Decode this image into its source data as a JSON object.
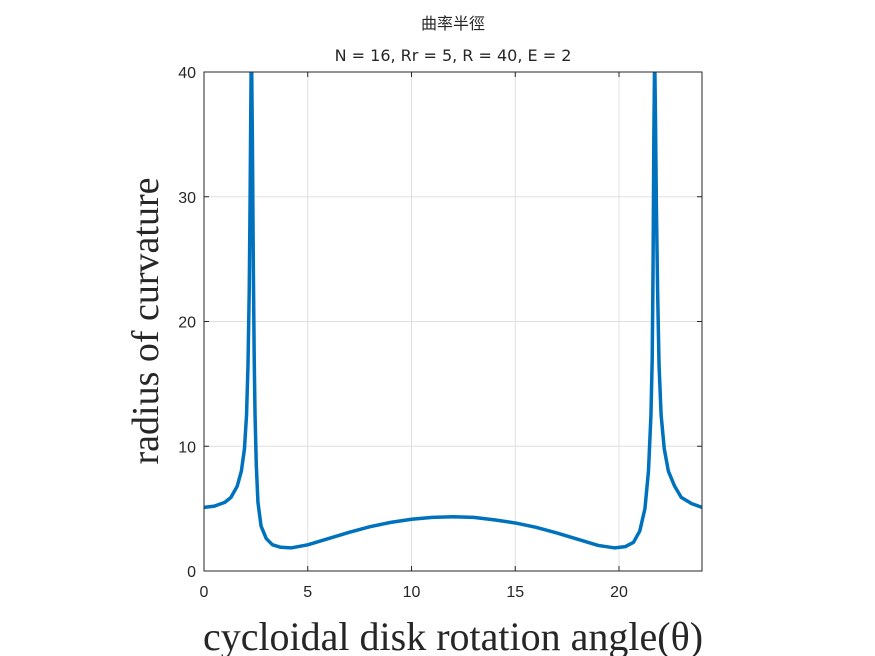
{
  "chart_data": {
    "type": "line",
    "title": "曲率半徑",
    "subtitle": "N = 16, Rr = 5, R = 40, E = 2",
    "xlabel": "cycloidal disk rotation angle(θ)",
    "ylabel": "radius of curvature",
    "xlim": [
      0,
      24
    ],
    "ylim": [
      0,
      40
    ],
    "xticks": [
      0,
      5,
      10,
      15,
      20
    ],
    "yticks": [
      0,
      10,
      20,
      30,
      40
    ],
    "grid": true,
    "colors": {
      "series": "#0072BD",
      "axis": "#262626",
      "grid": "#E0E0E0"
    },
    "series": [
      {
        "x": [
          0,
          0.5,
          1.0,
          1.3,
          1.6,
          1.8,
          1.95,
          2.05,
          2.12,
          2.18,
          2.22,
          2.25,
          2.27,
          2.3,
          2.33,
          2.38,
          2.42,
          2.46,
          2.52,
          2.6,
          2.75,
          3.0,
          3.3,
          3.7,
          4.2,
          5.0,
          6.0,
          7.0,
          8.0,
          9.0,
          10.0,
          11.0,
          12.0,
          13.0,
          14.0,
          15.0,
          16.0,
          17.0,
          18.0,
          19.0,
          19.8,
          20.3,
          20.7,
          21.0,
          21.25,
          21.42,
          21.54,
          21.6,
          21.64,
          21.68,
          21.71,
          21.73,
          21.76,
          21.8,
          21.86,
          21.93,
          22.03,
          22.18,
          22.38,
          22.68,
          23.0,
          23.5,
          24.0
        ],
        "y": [
          5.1,
          5.2,
          5.5,
          5.9,
          6.8,
          8.0,
          9.8,
          12.5,
          16.5,
          22.5,
          29.5,
          36.0,
          40.0,
          40.0,
          35.0,
          24.0,
          17.0,
          12.5,
          8.5,
          5.5,
          3.6,
          2.6,
          2.1,
          1.9,
          1.85,
          2.1,
          2.6,
          3.1,
          3.55,
          3.9,
          4.15,
          4.3,
          4.35,
          4.3,
          4.1,
          3.85,
          3.5,
          3.05,
          2.55,
          2.05,
          1.85,
          1.95,
          2.3,
          3.2,
          5.0,
          8.0,
          12.5,
          17.0,
          24.0,
          35.0,
          40.0,
          40.0,
          36.0,
          29.5,
          22.5,
          16.5,
          12.5,
          9.8,
          8.0,
          6.8,
          5.9,
          5.4,
          5.1
        ]
      }
    ]
  }
}
